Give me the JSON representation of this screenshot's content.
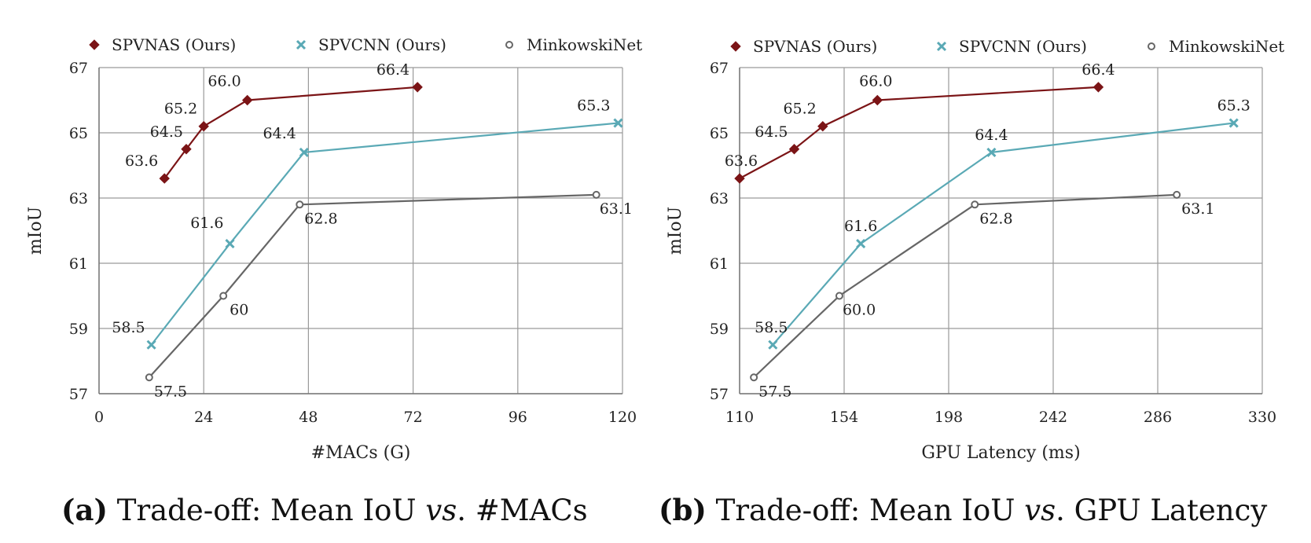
{
  "chart_data": [
    {
      "type": "line",
      "xlabel": "#MACs (G)",
      "ylabel": "mIoU",
      "xlim": [
        0,
        120
      ],
      "ylim": [
        57,
        67
      ],
      "xticks": [
        "0",
        "24",
        "48",
        "72",
        "96",
        "120"
      ],
      "yticks": [
        "57",
        "59",
        "61",
        "63",
        "65",
        "67"
      ],
      "grid": true,
      "legend_position": "top",
      "caption_bold": "(a)",
      "caption_a": " Trade-off: Mean IoU ",
      "caption_italic": "vs",
      "caption_b": ". #MACs",
      "series": [
        {
          "name": "SPVNAS (Ours)",
          "color": "#7b1416",
          "marker": "diamond",
          "x": [
            15,
            20,
            24,
            34,
            73
          ],
          "y": [
            63.6,
            64.5,
            65.2,
            66.0,
            66.4
          ],
          "labels": [
            "63.6",
            "64.5",
            "65.2",
            "66.0",
            "66.4"
          ]
        },
        {
          "name": "SPVCNN (Ours)",
          "color": "#5aa9b5",
          "marker": "x",
          "x": [
            12,
            30,
            47,
            119
          ],
          "y": [
            58.5,
            61.6,
            64.4,
            65.3
          ],
          "labels": [
            "58.5",
            "61.6",
            "64.4",
            "65.3"
          ]
        },
        {
          "name": "MinkowskiNet",
          "color": "#666666",
          "marker": "circle",
          "x": [
            11.5,
            28.5,
            46,
            114
          ],
          "y": [
            57.5,
            60.0,
            62.8,
            63.1
          ],
          "labels": [
            "57.5",
            "60",
            "62.8",
            "63.1"
          ]
        }
      ]
    },
    {
      "type": "line",
      "xlabel": "GPU Latency (ms)",
      "ylabel": "mIoU",
      "xlim": [
        110,
        330
      ],
      "ylim": [
        57,
        67
      ],
      "xticks": [
        "110",
        "154",
        "198",
        "242",
        "286",
        "330"
      ],
      "yticks": [
        "57",
        "59",
        "61",
        "63",
        "65",
        "67"
      ],
      "grid": true,
      "legend_position": "top",
      "caption_bold": "(b)",
      "caption_a": " Trade-off: Mean IoU ",
      "caption_italic": "vs",
      "caption_b": ". GPU Latency",
      "series": [
        {
          "name": "SPVNAS (Ours)",
          "color": "#7b1416",
          "marker": "diamond",
          "x": [
            110,
            133,
            145,
            168,
            261
          ],
          "y": [
            63.6,
            64.5,
            65.2,
            66.0,
            66.4
          ],
          "labels": [
            "63.6",
            "64.5",
            "65.2",
            "66.0",
            "66.4"
          ]
        },
        {
          "name": "SPVCNN (Ours)",
          "color": "#5aa9b5",
          "marker": "x",
          "x": [
            124,
            161,
            216,
            318
          ],
          "y": [
            58.5,
            61.6,
            64.4,
            65.3
          ],
          "labels": [
            "58.5",
            "61.6",
            "64.4",
            "65.3"
          ]
        },
        {
          "name": "MinkowskiNet",
          "color": "#666666",
          "marker": "circle",
          "x": [
            116,
            152,
            209,
            294
          ],
          "y": [
            57.5,
            60.0,
            62.8,
            63.1
          ],
          "labels": [
            "57.5",
            "60.0",
            "62.8",
            "63.1"
          ]
        }
      ]
    }
  ]
}
